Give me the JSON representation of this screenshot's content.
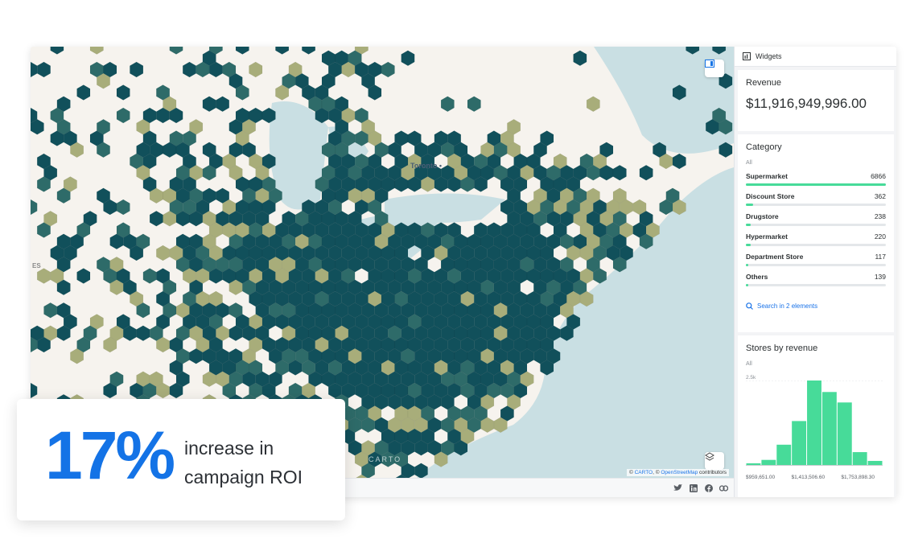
{
  "map": {
    "city_label": "Toronto",
    "edge_label": "ES",
    "watermark": "CARTO",
    "attribution": {
      "prefix": "© ",
      "carto": "CARTO",
      "sep": ", © ",
      "osm": "OpenStreetMap",
      "suffix": " contributors"
    }
  },
  "footer": {
    "icons": [
      "twitter-icon",
      "linkedin-icon",
      "facebook-icon",
      "link-icon"
    ]
  },
  "panel": {
    "header": "Widgets",
    "revenue": {
      "title": "Revenue",
      "value": "$11,916,949,996.00"
    },
    "category": {
      "title": "Category",
      "filter": "All",
      "items": [
        {
          "label": "Supermarket",
          "value": "6866",
          "fraction": 1.0
        },
        {
          "label": "Discount Store",
          "value": "362",
          "fraction": 0.053
        },
        {
          "label": "Drugstore",
          "value": "238",
          "fraction": 0.035
        },
        {
          "label": "Hypermarket",
          "value": "220",
          "fraction": 0.032
        },
        {
          "label": "Department Store",
          "value": "117",
          "fraction": 0.017
        },
        {
          "label": "Others",
          "value": "139",
          "fraction": 0.02
        }
      ],
      "search_label": "Search in 2 elements"
    },
    "stores": {
      "title": "Stores by revenue",
      "filter": "All",
      "y_tick": "2.5k",
      "x_ticks": [
        "$959,651.00",
        "$1,413,506.60",
        "$1,753,898.30"
      ]
    }
  },
  "chart_data": {
    "type": "bar",
    "title": "Stores by revenue",
    "ytick_labels": [
      "2.5k"
    ],
    "xtick_labels": [
      "$959,651.00",
      "$1,413,506.60",
      "$1,753,898.30"
    ],
    "values": [
      50,
      150,
      600,
      1300,
      2500,
      2160,
      1850,
      380,
      120
    ],
    "ylim": [
      0,
      2500
    ],
    "color": "#47db99"
  },
  "overlay": {
    "percent": "17%",
    "line1": "increase in",
    "line2": "campaign ROI"
  },
  "colors": {
    "accent": "#1473e6",
    "bar": "#47db99",
    "hex_dark": "#11505b",
    "hex_mid": "#2e6b69",
    "hex_light": "#a8ad7a",
    "water": "#c9dfe3",
    "land": "#f6f3ee"
  }
}
